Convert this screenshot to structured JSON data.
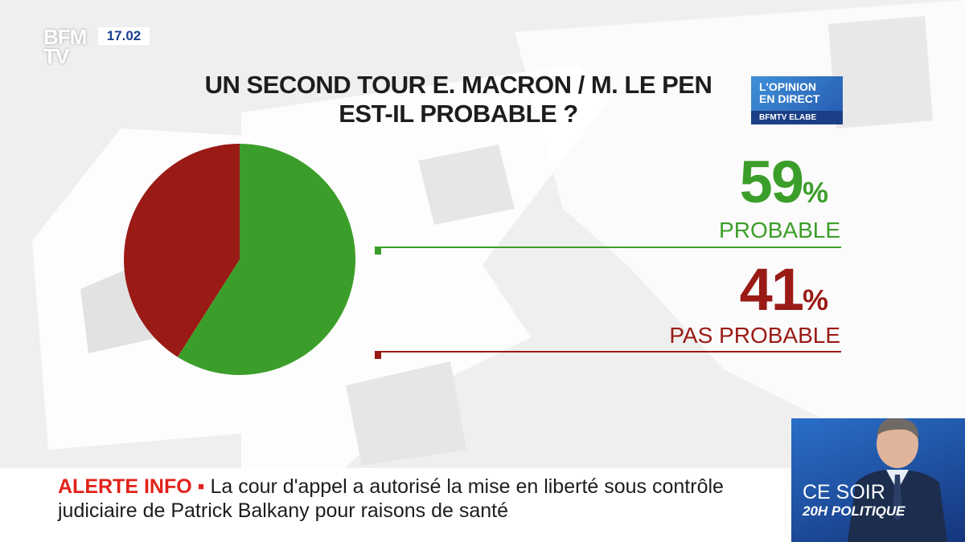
{
  "channel": {
    "logo_line1": "BFM",
    "logo_line2": "TV",
    "time": "17.02"
  },
  "badge": {
    "line1": "L'OPINION",
    "line2": "EN DIRECT",
    "line3": "BFMTV ELABE"
  },
  "chart_data": {
    "type": "pie",
    "title_line1": "UN SECOND TOUR E. MACRON / M. LE PEN",
    "title_line2": "EST-IL PROBABLE ?",
    "slices": [
      {
        "name": "PROBABLE",
        "value": 59,
        "display": "59",
        "color": "#3c9e2a"
      },
      {
        "name": "PAS PROBABLE",
        "value": 41,
        "display": "41",
        "color": "#9a1a15"
      }
    ],
    "percent_sign": "%"
  },
  "ticker": {
    "alert_label": "ALERTE INFO",
    "bullet": "▪",
    "text": "La cour d'appel a autorisé la mise en liberté sous contrôle judiciaire de Patrick Balkany pour raisons de santé"
  },
  "promo": {
    "line1": "CE SOIR",
    "line2": "20H POLITIQUE"
  },
  "colors": {
    "green": "#3c9e2a",
    "red": "#9a1a15",
    "alert_red": "#e2221a"
  }
}
